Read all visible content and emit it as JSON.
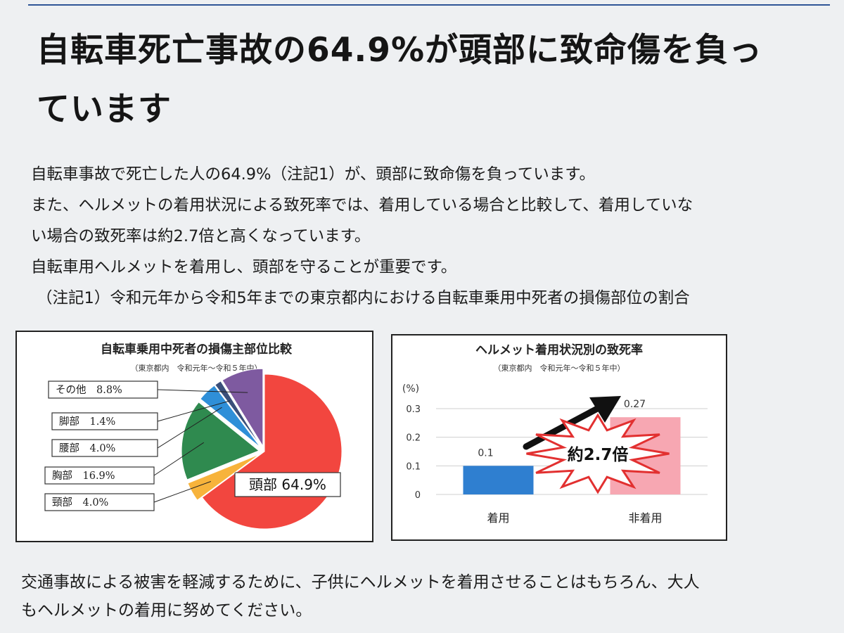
{
  "page": {
    "headline_line1": "自転車死亡事故の64.9%が頭部に致命傷を負っ",
    "headline_line2": "ています",
    "paragraphs": [
      "自転車事故で死亡した人の64.9%（注記1）が、頭部に致命傷を負っています。",
      "また、ヘルメットの着用状況による致死率では、着用している場合と比較して、着用していな",
      "い場合の致死率は約2.7倍と高くなっています。",
      "自転車用ヘルメットを着用し、頭部を守ることが重要です。",
      "（注記1）令和元年から令和5年までの東京都内における自転車乗用中死者の損傷部位の割合"
    ],
    "closing": [
      "交通事故による被害を軽減するために、子供にヘルメットを着用させることはもちろん、大人",
      "もヘルメットの着用に努めてください。"
    ]
  },
  "chart_data": [
    {
      "type": "pie",
      "title": "自転車乗用中死者の損傷主部位比較",
      "subtitle": "（東京都内　令和元年～令和５年中）",
      "slices": [
        {
          "label": "頭部",
          "value": 64.9,
          "display": "頭部 64.9%",
          "color": "#f2463f"
        },
        {
          "label": "頸部",
          "value": 4.0,
          "display": "頸部　4.0%",
          "color": "#f7b33b"
        },
        {
          "label": "胸部",
          "value": 16.9,
          "display": "胸部　16.9%",
          "color": "#2f8a4f"
        },
        {
          "label": "腰部",
          "value": 4.0,
          "display": "腰部　4.0%",
          "color": "#2f8fd8"
        },
        {
          "label": "脚部",
          "value": 1.4,
          "display": "脚部　1.4%",
          "color": "#3a4f7a"
        },
        {
          "label": "その他",
          "value": 8.8,
          "display": "その他　8.8%",
          "color": "#7e5aa0"
        }
      ]
    },
    {
      "type": "bar",
      "title": "ヘルメット着用状況別の致死率",
      "subtitle": "（東京都内　令和元年～令和５年中）",
      "ylabel": "(%)",
      "ylim": [
        0,
        0.3
      ],
      "yticks": [
        "0",
        "0.1",
        "0.2",
        "0.3"
      ],
      "categories": [
        "着用",
        "非着用"
      ],
      "values": [
        0.1,
        0.27
      ],
      "value_labels": [
        "0.1",
        "0.27"
      ],
      "colors": [
        "#2f7fd0",
        "#f7a7b2"
      ],
      "annotation": "約2.7倍",
      "grid": true
    }
  ]
}
